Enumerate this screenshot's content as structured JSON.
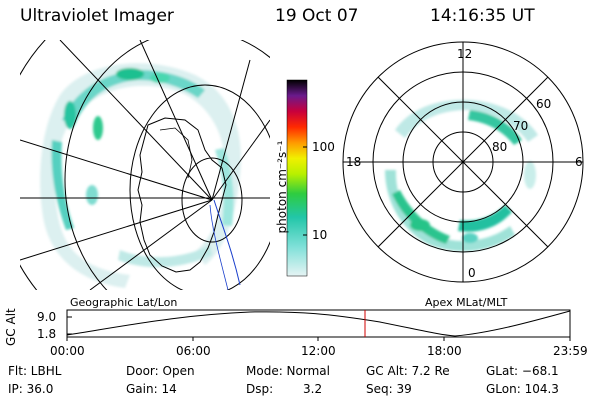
{
  "header": {
    "instrument": "Ultraviolet Imager",
    "date": "19 Oct 07",
    "time": "14:16:35 UT"
  },
  "colorbar": {
    "unit_label": "photon cm⁻²s⁻¹",
    "ticks": [
      "100",
      "10"
    ]
  },
  "polar_plot": {
    "mlt_labels": [
      "12",
      "18",
      "6",
      "0"
    ],
    "mlat_labels": [
      "60",
      "70",
      "80"
    ]
  },
  "projection_labels": {
    "left": "Geographic Lat/Lon",
    "right": "Apex MLat/MLT"
  },
  "altitude_plot": {
    "ylabel": "GC Alt",
    "yticks": [
      "9.0",
      "1.8"
    ],
    "xticks": [
      "00:00",
      "06:00",
      "12:00",
      "18:00",
      "23:59"
    ],
    "current_time_marker": "14:16"
  },
  "status": {
    "flt": "Flt: LBHL",
    "ip": "IP: 36.0",
    "door": "Door: Open",
    "gain": "Gain: 14",
    "mode": "Mode: Normal",
    "dsp_label": "Dsp:",
    "dsp_value": "3.2",
    "gc_alt": "GC Alt: 7.2 Re",
    "seq": "Seq: 39",
    "glat": "GLat: −68.1",
    "glon": "GLon: 104.3"
  },
  "colors": {
    "marker": "#d00000",
    "coastline": "#000000",
    "meridian": "#1a3fcc"
  }
}
